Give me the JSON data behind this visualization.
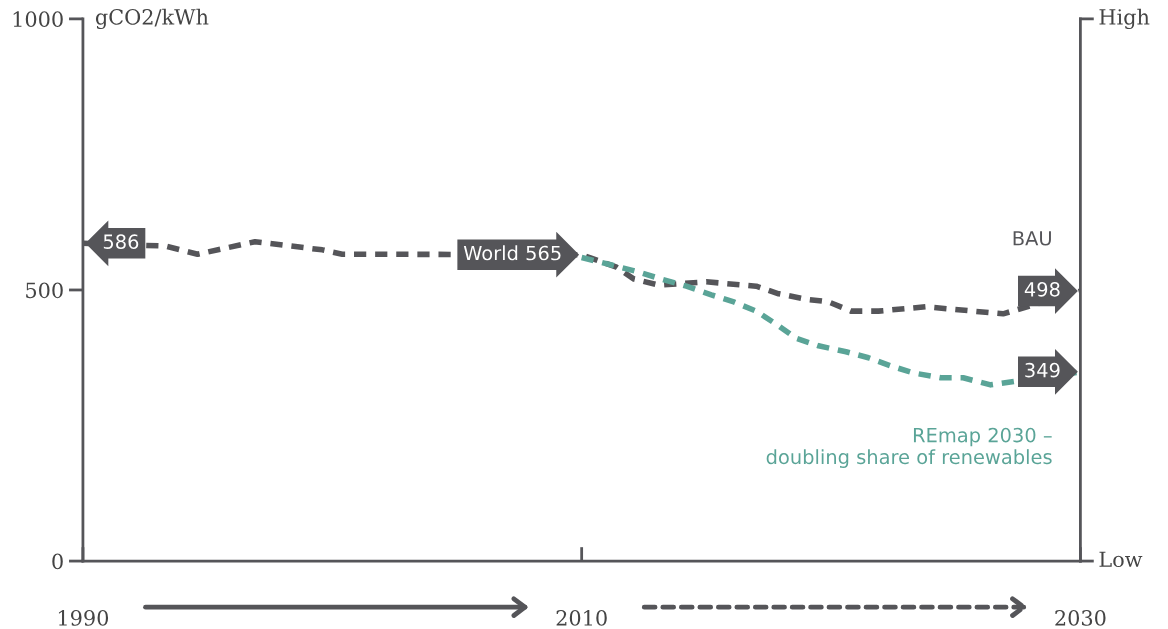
{
  "chart_data": {
    "type": "line",
    "ylabel": "gCO2/kWh",
    "xlim": [
      1990,
      2030
    ],
    "xticks": [
      1990,
      2010,
      2030
    ],
    "ylim": [
      0,
      1000
    ],
    "yticks": [
      0,
      500,
      1000
    ],
    "annotations": [
      "High",
      "Low"
    ],
    "grid": false,
    "legend": false,
    "line_style": "dashed",
    "marker": "none",
    "series": [
      {
        "name": "BAU",
        "color": "#555559",
        "x": [
          1990,
          1993.3,
          1994.6,
          1996.9,
          1999.6,
          2000.4,
          2010,
          2011.4,
          2012.1,
          2013.1,
          2015.0,
          2017.0,
          2017.9,
          2019.0,
          2019.9,
          2020.8,
          2021.9,
          2023.8,
          2025.7,
          2026.9,
          2030
        ],
        "values": [
          586,
          581,
          566,
          589,
          574,
          566,
          565,
          542,
          520,
          509,
          515,
          507,
          493,
          483,
          478,
          461,
          461,
          469,
          461,
          456,
          498
        ],
        "value_labels": [
          "586",
          null,
          null,
          null,
          null,
          null,
          "World 565",
          null,
          null,
          null,
          null,
          null,
          null,
          null,
          null,
          null,
          null,
          null,
          null,
          null,
          "498"
        ]
      },
      {
        "name": "REmap 2030 –\ndoubling share of renewables",
        "color": "#5aa497",
        "x": [
          2010,
          2011.2,
          2012.3,
          2013.2,
          2014.2,
          2015.2,
          2016.1,
          2017.0,
          2017.8,
          2018.6,
          2019.5,
          2020.6,
          2021.5,
          2022.4,
          2023.3,
          2024.4,
          2025.3,
          2026.4,
          2030
        ],
        "values": [
          560,
          546,
          533,
          520,
          507,
          491,
          478,
          461,
          437,
          411,
          397,
          386,
          375,
          360,
          347,
          338,
          338,
          325,
          349
        ],
        "value_labels": [
          null,
          null,
          null,
          null,
          null,
          null,
          null,
          null,
          null,
          null,
          null,
          null,
          null,
          null,
          null,
          null,
          null,
          null,
          "349"
        ]
      }
    ]
  }
}
